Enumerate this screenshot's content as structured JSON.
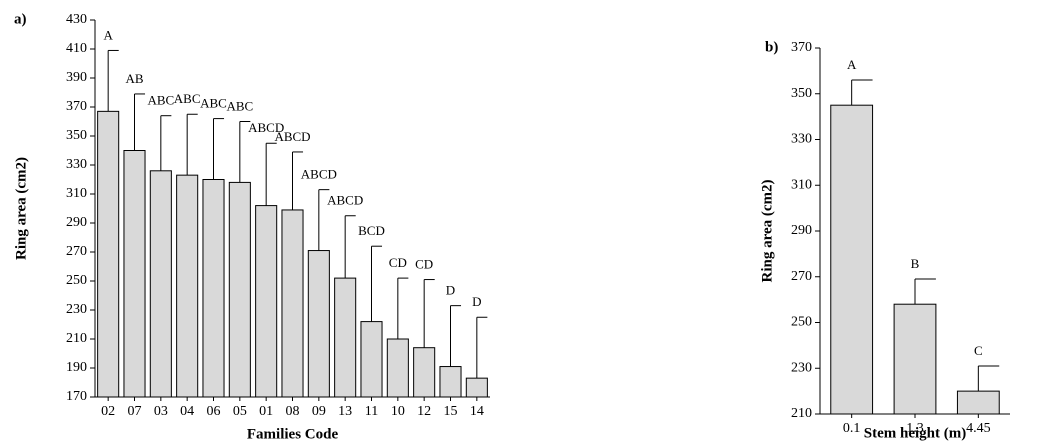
{
  "chart_data": [
    {
      "type": "bar",
      "panel": "a)",
      "x_label": "Families Code",
      "y_label": "Ring area (cm2)",
      "color": "#d9d9d9",
      "categories": [
        "02",
        "07",
        "03",
        "04",
        "06",
        "05",
        "01",
        "08",
        "09",
        "13",
        "11",
        "10",
        "12",
        "15",
        "14"
      ],
      "values": [
        367,
        340,
        326,
        323,
        320,
        318,
        302,
        299,
        271,
        252,
        222,
        210,
        204,
        191,
        183
      ],
      "errors": [
        42,
        39,
        38,
        42,
        42,
        42,
        43,
        40,
        42,
        43,
        52,
        42,
        47,
        42,
        42
      ],
      "letters": [
        "A",
        "AB",
        "ABC",
        "ABC",
        "ABC",
        "ABC",
        "ABCD",
        "ABCD",
        "ABCD",
        "ABCD",
        "BCD",
        "CD",
        "CD",
        "D",
        "D"
      ],
      "ylim": [
        170,
        430
      ],
      "yticks": [
        170,
        190,
        210,
        230,
        250,
        270,
        290,
        310,
        330,
        350,
        370,
        390,
        410,
        430
      ]
    },
    {
      "type": "bar",
      "panel": "b)",
      "x_label": "Stem height (m)",
      "y_label": "Ring area (cm2)",
      "color": "#d9d9d9",
      "categories": [
        "0.1",
        "1.3",
        "4.45"
      ],
      "values": [
        345,
        258,
        220
      ],
      "errors": [
        11,
        11,
        11
      ],
      "letters": [
        "A",
        "B",
        "C"
      ],
      "ylim": [
        210,
        370
      ],
      "yticks": [
        210,
        230,
        250,
        270,
        290,
        310,
        330,
        350,
        370
      ]
    }
  ]
}
